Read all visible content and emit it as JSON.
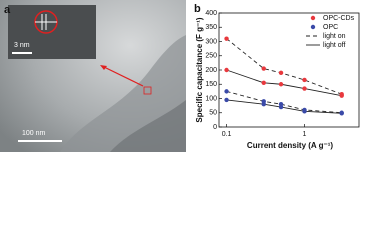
{
  "image_panel": {
    "panel_label": "a",
    "inset_scale": "3 nm",
    "scale": "100 nm"
  },
  "chart_data": {
    "type": "line",
    "panel_label": "b",
    "x_label": "Current density (A g⁻¹)",
    "y_label": "Specific capacitance (F g⁻¹)",
    "x": [
      0.1,
      0.3,
      0.5,
      1,
      3
    ],
    "xlog": true,
    "xlim": [
      0.08,
      5
    ],
    "xticks": [
      0.1,
      1
    ],
    "ylim": [
      0,
      400
    ],
    "yticks": [
      0,
      50,
      100,
      150,
      200,
      250,
      300,
      350,
      400
    ],
    "materials": [
      {
        "name": "OPC-CDs",
        "color": "#e8383d"
      },
      {
        "name": "OPC",
        "color": "#3a4aa8"
      }
    ],
    "conditions": [
      {
        "name": "light on",
        "dash": "4 3"
      },
      {
        "name": "light off",
        "dash": "none"
      }
    ],
    "series": [
      {
        "material": "OPC-CDs",
        "condition": "light on",
        "values": [
          310,
          205,
          190,
          165,
          115
        ]
      },
      {
        "material": "OPC-CDs",
        "condition": "light off",
        "values": [
          200,
          155,
          150,
          135,
          110
        ]
      },
      {
        "material": "OPC",
        "condition": "light on",
        "values": [
          125,
          90,
          80,
          60,
          50
        ]
      },
      {
        "material": "OPC",
        "condition": "light off",
        "values": [
          95,
          80,
          70,
          55,
          48
        ]
      }
    ]
  }
}
